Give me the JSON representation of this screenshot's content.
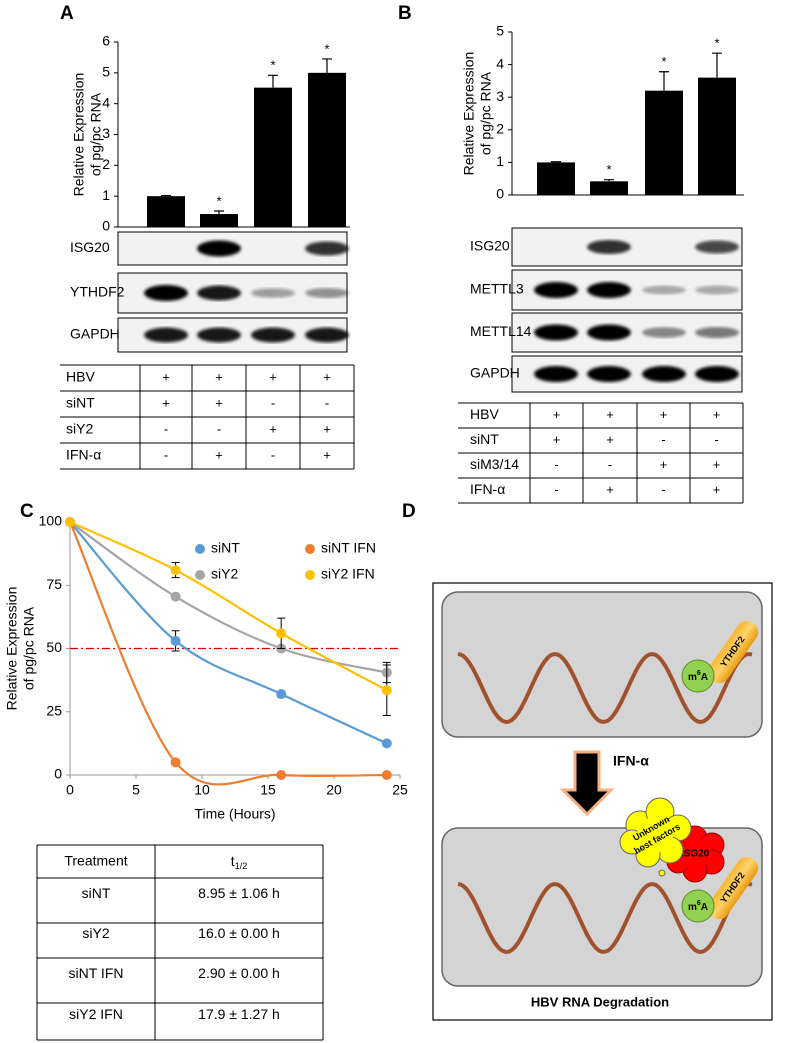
{
  "panels": [
    "A",
    "B",
    "C",
    "D"
  ],
  "chart_data": [
    {
      "type": "bar",
      "ylabel": [
        "Relative Expression",
        "of pg/pc RNA"
      ],
      "categories": [
        null,
        null,
        null,
        null
      ],
      "values": [
        1.0,
        0.42,
        4.52,
        5.0
      ],
      "errors": [
        0.02,
        0.1,
        0.4,
        0.45
      ],
      "significance": [
        null,
        "*",
        "*",
        "*"
      ],
      "color": "#000000",
      "ylim": [
        0,
        6
      ],
      "yticks": [
        0,
        1,
        2,
        3,
        4,
        5,
        6
      ]
    },
    {
      "type": "bar",
      "ylabel": [
        "Relative Expression",
        "of pg/pc RNA"
      ],
      "categories": [
        null,
        null,
        null,
        null
      ],
      "values": [
        1.0,
        0.42,
        3.2,
        3.6
      ],
      "errors": [
        0.02,
        0.05,
        0.58,
        0.75
      ],
      "significance": [
        null,
        "*",
        "*",
        "*"
      ],
      "color": "#000000",
      "ylim": [
        0,
        5
      ],
      "yticks": [
        0,
        1,
        2,
        3,
        4,
        5
      ]
    },
    {
      "type": "line",
      "xlabel": "Time (Hours)",
      "ylabel": [
        "Relative Expression",
        "of pg/pc RNA"
      ],
      "x": [
        0,
        8,
        16,
        24
      ],
      "xlim": [
        0,
        25
      ],
      "xticks": [
        0,
        5,
        10,
        15,
        20,
        25
      ],
      "ylim": [
        0,
        100
      ],
      "yticks": [
        0,
        25,
        50,
        75,
        100
      ],
      "reference_line": 50,
      "reference_color": "#d00000",
      "series": [
        {
          "name": "siNT",
          "color": "#5b9bd5",
          "values": [
            100,
            53,
            32,
            12.5
          ],
          "errors": [
            null,
            4,
            null,
            null
          ]
        },
        {
          "name": "siNT IFN",
          "color": "#ed7d31",
          "values": [
            100,
            5,
            0,
            0
          ],
          "errors": [
            null,
            null,
            null,
            null
          ]
        },
        {
          "name": "siY2",
          "color": "#a5a5a5",
          "values": [
            100,
            70.5,
            50,
            40.5
          ],
          "errors": [
            null,
            null,
            null,
            4
          ]
        },
        {
          "name": "siY2 IFN",
          "color": "#ffc000",
          "values": [
            100,
            81,
            56,
            33.5
          ],
          "errors": [
            null,
            3,
            6,
            10
          ]
        }
      ]
    }
  ],
  "blots": [
    {
      "rows": [
        "ISG20",
        "YTHDF2",
        "GAPDH"
      ]
    },
    {
      "rows": [
        "ISG20",
        "METTL3",
        "METTL14",
        "GAPDH"
      ]
    }
  ],
  "conditions": [
    {
      "rows": [
        [
          "HBV",
          "+",
          "+",
          "+",
          "+"
        ],
        [
          "siNT",
          "+",
          "+",
          "-",
          "-"
        ],
        [
          "siY2",
          "-",
          "-",
          "+",
          "+"
        ],
        [
          "IFN-α",
          "-",
          "+",
          "-",
          "+"
        ]
      ]
    },
    {
      "rows": [
        [
          "HBV",
          "+",
          "+",
          "+",
          "+"
        ],
        [
          "siNT",
          "+",
          "+",
          "-",
          "-"
        ],
        [
          "siM3/14",
          "-",
          "-",
          "+",
          "+"
        ],
        [
          "IFN-α",
          "-",
          "+",
          "-",
          "+"
        ]
      ]
    }
  ],
  "half_life_table": {
    "header": [
      "Treatment",
      {
        "text": "t",
        "subscript": "1/2"
      }
    ],
    "rows": [
      [
        "siNT",
        "8.95 ± 1.06 h"
      ],
      [
        "siY2",
        "16.0 ± 0.00 h"
      ],
      [
        "siNT IFN",
        "2.90 ± 0.00 h"
      ],
      [
        "siY2 IFN",
        "17.9 ± 1.27 h"
      ]
    ]
  },
  "diagram": {
    "reader": "YTHDF2",
    "modification": {
      "base": "m",
      "sup": "6",
      "rest": "A"
    },
    "treatment": "IFN-α",
    "factors": [
      "Unknown",
      "host factors"
    ],
    "restriction_factor": "ISG20",
    "caption": "HBV RNA Degradation"
  }
}
